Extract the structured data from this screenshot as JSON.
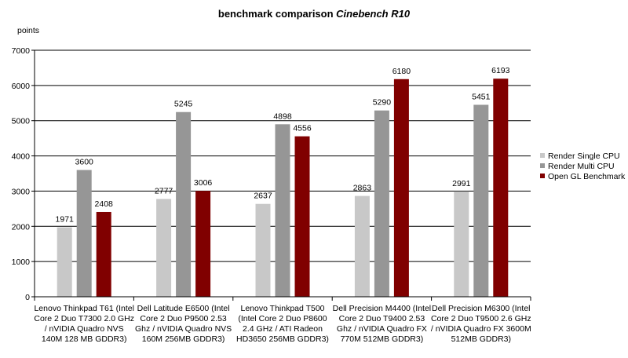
{
  "chart_data": {
    "type": "bar",
    "title": "benchmark comparison",
    "title_emphasis": "Cinebench R10",
    "ylabel": "points",
    "xlabel": "",
    "ylim": [
      0,
      7000
    ],
    "yticks": [
      0,
      1000,
      2000,
      3000,
      4000,
      5000,
      6000,
      7000
    ],
    "grid": true,
    "legend_position": "right",
    "categories": [
      [
        "Lenovo Thinkpad T61 (Intel",
        "Core 2 Duo T7300 2.0 GHz",
        "/ nVIDIA Quadro NVS",
        "140M 128 MB GDDR3)"
      ],
      [
        "Dell Latitude E6500 (Intel",
        "Core 2 Duo P9500 2.53",
        "Ghz / nVIDIA Quadro NVS",
        "160M 256MB GDDR3)"
      ],
      [
        "Lenovo Thinkpad T500",
        "(Intel Core 2 Duo P8600",
        "2.4 GHz / ATI Radeon",
        "HD3650 256MB GDDR3)"
      ],
      [
        "Dell Precision M4400 (Intel",
        "Core 2 Duo T9400 2.53",
        "Ghz / nVIDIA Quadro FX",
        "770M 512MB GDDR3)"
      ],
      [
        "Dell Precision M6300 (Intel",
        "Core 2 Duo T9500 2.6 GHz",
        "/ nVIDIA Quadro FX 3600M",
        "512MB GDDR3)"
      ]
    ],
    "series": [
      {
        "name": "Render Single CPU",
        "color": "#c8c8c8",
        "values": [
          1971,
          2777,
          2637,
          2863,
          2991
        ]
      },
      {
        "name": "Render Multi CPU",
        "color": "#969696",
        "values": [
          3600,
          5245,
          4898,
          5290,
          5451
        ]
      },
      {
        "name": "Open GL Benchmark",
        "color": "#800000",
        "values": [
          2408,
          3006,
          4556,
          6180,
          6193
        ]
      }
    ]
  }
}
